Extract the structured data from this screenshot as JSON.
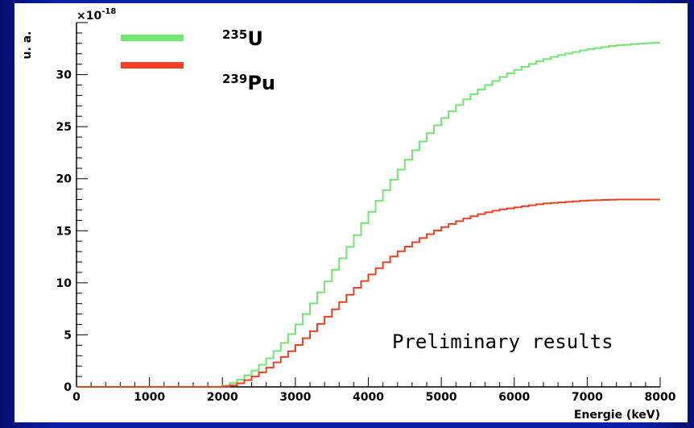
{
  "chart_data": {
    "type": "line",
    "title": "",
    "xlabel": "Energie (keV)",
    "ylabel": "u. a.",
    "y_exponent_label": "×10",
    "y_exponent_power": "-18",
    "xlim": [
      0,
      8000
    ],
    "ylim": [
      0,
      35
    ],
    "grid": false,
    "legend_position": "top-left",
    "x_ticks": [
      0,
      1000,
      2000,
      3000,
      4000,
      5000,
      6000,
      7000,
      8000
    ],
    "y_ticks": [
      0,
      5,
      10,
      15,
      20,
      25,
      30
    ],
    "annotation": "Preliminary results",
    "x": [
      0,
      1000,
      2000,
      2200,
      2400,
      2600,
      2800,
      3000,
      3200,
      3400,
      3600,
      3800,
      4000,
      4200,
      4400,
      4600,
      4800,
      5000,
      5200,
      5400,
      5600,
      5800,
      6000,
      6200,
      6400,
      6600,
      6800,
      7000,
      7200,
      7400,
      7600,
      7800,
      8000
    ],
    "series": [
      {
        "name_prefix": "235",
        "name_suffix": "U",
        "color": "#6fe86f",
        "values": [
          0,
          0,
          0,
          0.5,
          1.3,
          2.4,
          3.8,
          5.5,
          7.5,
          9.6,
          11.8,
          14.0,
          16.3,
          18.4,
          20.4,
          22.3,
          24.0,
          25.5,
          26.8,
          27.9,
          28.8,
          29.6,
          30.3,
          30.9,
          31.4,
          31.8,
          32.1,
          32.4,
          32.6,
          32.8,
          32.9,
          33.0,
          33.1
        ]
      },
      {
        "name_prefix": "239",
        "name_suffix": "Pu",
        "color": "#f04020",
        "values": [
          0,
          0,
          0,
          0.2,
          0.8,
          1.6,
          2.6,
          3.7,
          5.0,
          6.4,
          7.8,
          9.2,
          10.5,
          11.7,
          12.8,
          13.7,
          14.5,
          15.2,
          15.8,
          16.3,
          16.7,
          17.0,
          17.2,
          17.4,
          17.6,
          17.7,
          17.8,
          17.9,
          17.95,
          18.0,
          18.0,
          18.0,
          18.0
        ]
      }
    ]
  }
}
